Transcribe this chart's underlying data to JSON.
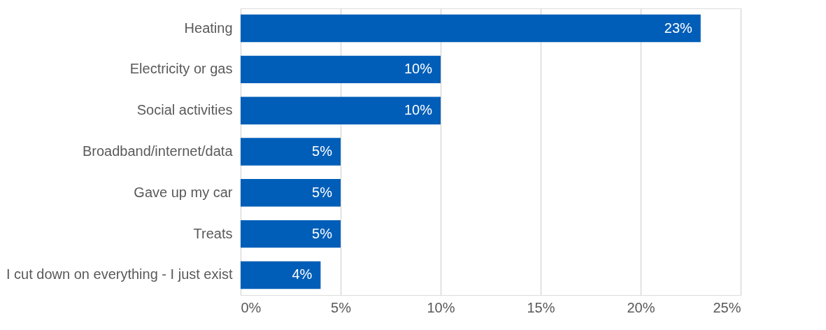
{
  "chart_data": {
    "type": "bar",
    "orientation": "horizontal",
    "categories": [
      "Heating",
      "Electricity or gas",
      "Social activities",
      "Broadband/internet/data",
      "Gave up my car",
      "Treats",
      "I cut down on everything - I just exist"
    ],
    "values": [
      23,
      10,
      10,
      5,
      5,
      5,
      4
    ],
    "value_labels": [
      "23%",
      "10%",
      "10%",
      "5%",
      "5%",
      "5%",
      "4%"
    ],
    "color": "#005eb8",
    "xlim": [
      0,
      25
    ],
    "xticks": [
      {
        "value": 0,
        "label": "0%"
      },
      {
        "value": 5,
        "label": "5%"
      },
      {
        "value": 10,
        "label": "10%"
      },
      {
        "value": 15,
        "label": "15%"
      },
      {
        "value": 20,
        "label": "20%"
      },
      {
        "value": 25,
        "label": "25%"
      }
    ],
    "grid": "x"
  }
}
